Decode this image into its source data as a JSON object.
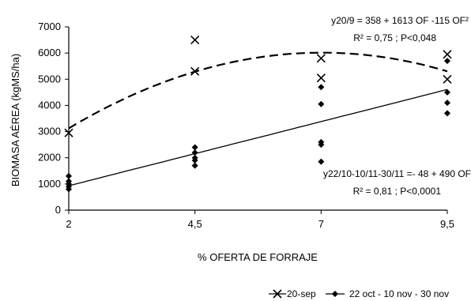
{
  "chart_data": {
    "type": "scatter",
    "xlabel": "% OFERTA DE FORRAJE",
    "ylabel": "BIOMASA AÉREA (kgMS/ha)",
    "xlim": [
      2,
      9.5
    ],
    "ylim": [
      0,
      7000
    ],
    "x_ticks": [
      "2",
      "4,5",
      "7",
      "9,5"
    ],
    "y_ticks": [
      "0",
      "1000",
      "2000",
      "3000",
      "4000",
      "5000",
      "6000",
      "7000"
    ],
    "series": [
      {
        "name": "20-sep",
        "marker": "x",
        "points": [
          {
            "x": 2,
            "y": 2950
          },
          {
            "x": 4.5,
            "y": 5300
          },
          {
            "x": 4.5,
            "y": 6500
          },
          {
            "x": 7,
            "y": 5800
          },
          {
            "x": 7,
            "y": 5050
          },
          {
            "x": 9.5,
            "y": 5950
          },
          {
            "x": 9.5,
            "y": 5000
          }
        ],
        "fit": {
          "type": "quadratic",
          "a": 358,
          "b": 1613,
          "c": -115,
          "style": "dashed"
        }
      },
      {
        "name": "22 oct - 10 nov - 30 nov",
        "marker": "diamond",
        "points": [
          {
            "x": 2,
            "y": 1300
          },
          {
            "x": 2,
            "y": 1100
          },
          {
            "x": 2,
            "y": 1000
          },
          {
            "x": 2,
            "y": 900
          },
          {
            "x": 2,
            "y": 800
          },
          {
            "x": 4.5,
            "y": 2400
          },
          {
            "x": 4.5,
            "y": 2200
          },
          {
            "x": 4.5,
            "y": 2000
          },
          {
            "x": 4.5,
            "y": 1900
          },
          {
            "x": 4.5,
            "y": 1700
          },
          {
            "x": 7,
            "y": 4700
          },
          {
            "x": 7,
            "y": 4050
          },
          {
            "x": 7,
            "y": 2600
          },
          {
            "x": 7,
            "y": 2500
          },
          {
            "x": 7,
            "y": 1850
          },
          {
            "x": 9.5,
            "y": 5700
          },
          {
            "x": 9.5,
            "y": 4500
          },
          {
            "x": 9.5,
            "y": 4100
          },
          {
            "x": 9.5,
            "y": 3700
          }
        ],
        "fit": {
          "type": "linear",
          "a": -48,
          "b": 490,
          "style": "solid"
        }
      }
    ],
    "annotations": [
      {
        "id": "eq1",
        "text": "y20/9 = 358 + 1613 OF -115 OF²"
      },
      {
        "id": "stat1",
        "text": "R² = 0,75 ; P<0,048"
      },
      {
        "id": "eq2",
        "text": "y22/10-10/11-30/11 =- 48 + 490 OF"
      },
      {
        "id": "stat2",
        "text": "R² = 0,81 ; P<0,0001"
      }
    ],
    "legend_position": "bottom",
    "grid": false
  }
}
